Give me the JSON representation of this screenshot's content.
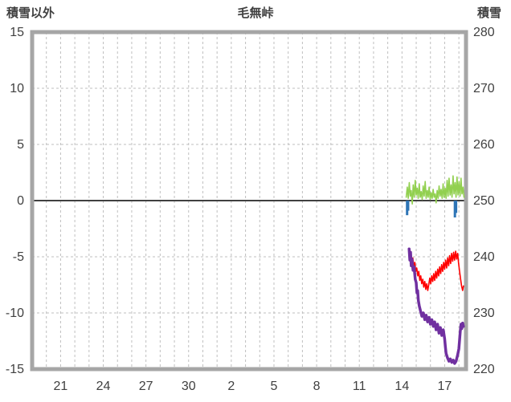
{
  "chart_data": {
    "type": "line",
    "title": "毛無峠",
    "left_axis_title": "積雪以外",
    "right_axis_title": "積雪",
    "x_axis": {
      "domain": [
        0,
        30.5
      ],
      "tick_positions": [
        2,
        5,
        8,
        11,
        14,
        17,
        20,
        23,
        26,
        29
      ],
      "tick_labels": [
        "21",
        "24",
        "27",
        "30",
        "2",
        "5",
        "8",
        "11",
        "14",
        "17"
      ],
      "gridline_step": 1
    },
    "y_axis_left": {
      "domain": [
        -15,
        15
      ],
      "ticks": [
        15,
        10,
        5,
        0,
        -5,
        -10,
        -15
      ]
    },
    "y_axis_right": {
      "domain": [
        220,
        280
      ],
      "ticks": [
        280,
        270,
        260,
        250,
        240,
        230,
        220
      ]
    },
    "grid": {
      "color": "#bfbfbf",
      "zero_line_color": "#404040",
      "dashed": true
    },
    "frame_color": "#a6a6a6",
    "text_color": "#404040",
    "bars": {
      "name": "blue-marks",
      "color": "#2e75b6",
      "axis": "left",
      "points": [
        {
          "x": 26.36,
          "v": -1.3
        },
        {
          "x": 26.43,
          "v": -0.9
        },
        {
          "x": 29.72,
          "v": -1.5
        },
        {
          "x": 29.8,
          "v": -1.1
        }
      ]
    },
    "series": [
      {
        "name": "green-spiky",
        "color": "#92d050",
        "width": 1.6,
        "axis": "left",
        "points": [
          [
            26.3,
            0.3
          ],
          [
            26.37,
            1.2
          ],
          [
            26.44,
            0.2
          ],
          [
            26.51,
            1.6
          ],
          [
            26.58,
            0.4
          ],
          [
            26.65,
            0.9
          ],
          [
            26.72,
            -0.3
          ],
          [
            26.79,
            1.4
          ],
          [
            26.86,
            0.3
          ],
          [
            26.93,
            1.8
          ],
          [
            27.0,
            0.5
          ],
          [
            27.07,
            1.1
          ],
          [
            27.14,
            0.2
          ],
          [
            27.21,
            1.5
          ],
          [
            27.28,
            0.3
          ],
          [
            27.35,
            0.8
          ],
          [
            27.42,
            0.1
          ],
          [
            27.49,
            1.3
          ],
          [
            27.56,
            0.4
          ],
          [
            27.63,
            1.7
          ],
          [
            27.7,
            0.2
          ],
          [
            27.77,
            0.9
          ],
          [
            27.84,
            0.3
          ],
          [
            27.91,
            1.2
          ],
          [
            27.98,
            0.1
          ],
          [
            28.05,
            0.7
          ],
          [
            28.12,
            0.2
          ],
          [
            28.19,
            1.0
          ],
          [
            28.26,
            0.3
          ],
          [
            28.33,
            0.6
          ],
          [
            28.4,
            -0.2
          ],
          [
            28.47,
            0.9
          ],
          [
            28.54,
            0.2
          ],
          [
            28.61,
            1.3
          ],
          [
            28.68,
            0.4
          ],
          [
            28.75,
            1.0
          ],
          [
            28.82,
            0.2
          ],
          [
            28.89,
            1.5
          ],
          [
            28.96,
            0.3
          ],
          [
            29.03,
            1.1
          ],
          [
            29.1,
            0.2
          ],
          [
            29.17,
            1.8
          ],
          [
            29.24,
            0.4
          ],
          [
            29.31,
            2.0
          ],
          [
            29.38,
            0.5
          ],
          [
            29.45,
            1.4
          ],
          [
            29.52,
            0.3
          ],
          [
            29.59,
            2.2
          ],
          [
            29.66,
            0.6
          ],
          [
            29.73,
            1.6
          ],
          [
            29.8,
            0.3
          ],
          [
            29.87,
            2.1
          ],
          [
            29.94,
            0.5
          ],
          [
            30.01,
            1.7
          ],
          [
            30.08,
            0.4
          ],
          [
            30.15,
            2.0
          ],
          [
            30.22,
            0.6
          ],
          [
            30.29,
            1.2
          ],
          [
            30.36,
            0.3
          ]
        ]
      },
      {
        "name": "red-jagged",
        "color": "#ff0000",
        "width": 1.6,
        "axis": "left",
        "points": [
          [
            26.55,
            -5.0
          ],
          [
            26.62,
            -4.7
          ],
          [
            26.69,
            -5.4
          ],
          [
            26.76,
            -5.1
          ],
          [
            26.83,
            -5.9
          ],
          [
            26.9,
            -5.5
          ],
          [
            26.97,
            -6.3
          ],
          [
            27.04,
            -6.0
          ],
          [
            27.11,
            -6.7
          ],
          [
            27.18,
            -6.3
          ],
          [
            27.25,
            -7.1
          ],
          [
            27.32,
            -6.7
          ],
          [
            27.39,
            -7.4
          ],
          [
            27.46,
            -7.0
          ],
          [
            27.53,
            -7.7
          ],
          [
            27.6,
            -7.2
          ],
          [
            27.67,
            -7.9
          ],
          [
            27.74,
            -7.4
          ],
          [
            27.81,
            -8.0
          ],
          [
            27.88,
            -7.5
          ],
          [
            27.95,
            -6.9
          ],
          [
            28.02,
            -7.4
          ],
          [
            28.09,
            -6.7
          ],
          [
            28.16,
            -7.2
          ],
          [
            28.23,
            -6.5
          ],
          [
            28.3,
            -7.1
          ],
          [
            28.37,
            -6.3
          ],
          [
            28.44,
            -6.9
          ],
          [
            28.51,
            -6.1
          ],
          [
            28.58,
            -6.7
          ],
          [
            28.65,
            -5.9
          ],
          [
            28.72,
            -6.5
          ],
          [
            28.79,
            -5.7
          ],
          [
            28.86,
            -6.3
          ],
          [
            28.93,
            -5.5
          ],
          [
            29.0,
            -6.1
          ],
          [
            29.07,
            -5.3
          ],
          [
            29.14,
            -6.0
          ],
          [
            29.21,
            -5.1
          ],
          [
            29.28,
            -5.8
          ],
          [
            29.35,
            -4.9
          ],
          [
            29.42,
            -5.6
          ],
          [
            29.49,
            -4.7
          ],
          [
            29.56,
            -5.4
          ],
          [
            29.63,
            -4.6
          ],
          [
            29.7,
            -5.3
          ],
          [
            29.77,
            -4.5
          ],
          [
            29.84,
            -5.2
          ],
          [
            29.91,
            -4.7
          ],
          [
            29.98,
            -5.6
          ],
          [
            30.05,
            -6.3
          ],
          [
            30.12,
            -7.0
          ],
          [
            30.19,
            -7.6
          ],
          [
            30.26,
            -8.0
          ],
          [
            30.32,
            -7.6
          ]
        ]
      },
      {
        "name": "snow-depth-purple",
        "color": "#7030a0",
        "width": 3.5,
        "axis": "right",
        "points": [
          [
            26.5,
            241.4
          ],
          [
            26.55,
            239.4
          ],
          [
            26.6,
            240.8
          ],
          [
            26.65,
            238.4
          ],
          [
            26.7,
            239.6
          ],
          [
            26.78,
            237.6
          ],
          [
            26.85,
            238.2
          ],
          [
            26.93,
            236.0
          ],
          [
            27.0,
            235.4
          ],
          [
            27.05,
            233.6
          ],
          [
            27.1,
            234.0
          ],
          [
            27.15,
            232.2
          ],
          [
            27.22,
            231.2
          ],
          [
            27.3,
            230.4
          ],
          [
            27.4,
            229.4
          ],
          [
            27.5,
            230.0
          ],
          [
            27.6,
            228.8
          ],
          [
            27.7,
            229.6
          ],
          [
            27.8,
            228.4
          ],
          [
            27.9,
            229.2
          ],
          [
            28.0,
            228.0
          ],
          [
            28.1,
            228.8
          ],
          [
            28.2,
            227.6
          ],
          [
            28.3,
            228.4
          ],
          [
            28.4,
            227.0
          ],
          [
            28.5,
            228.0
          ],
          [
            28.6,
            226.4
          ],
          [
            28.7,
            227.4
          ],
          [
            28.8,
            226.0
          ],
          [
            28.9,
            227.0
          ],
          [
            29.0,
            225.4
          ],
          [
            29.05,
            224.0
          ],
          [
            29.1,
            222.8
          ],
          [
            29.2,
            222.0
          ],
          [
            29.3,
            221.4
          ],
          [
            29.4,
            221.8
          ],
          [
            29.5,
            221.2
          ],
          [
            29.6,
            221.6
          ],
          [
            29.7,
            221.0
          ],
          [
            29.8,
            221.4
          ],
          [
            29.9,
            222.4
          ],
          [
            30.0,
            223.6
          ],
          [
            30.05,
            225.2
          ],
          [
            30.1,
            226.8
          ],
          [
            30.15,
            228.0
          ],
          [
            30.2,
            227.2
          ],
          [
            30.26,
            228.2
          ],
          [
            30.32,
            227.6
          ]
        ]
      }
    ]
  }
}
